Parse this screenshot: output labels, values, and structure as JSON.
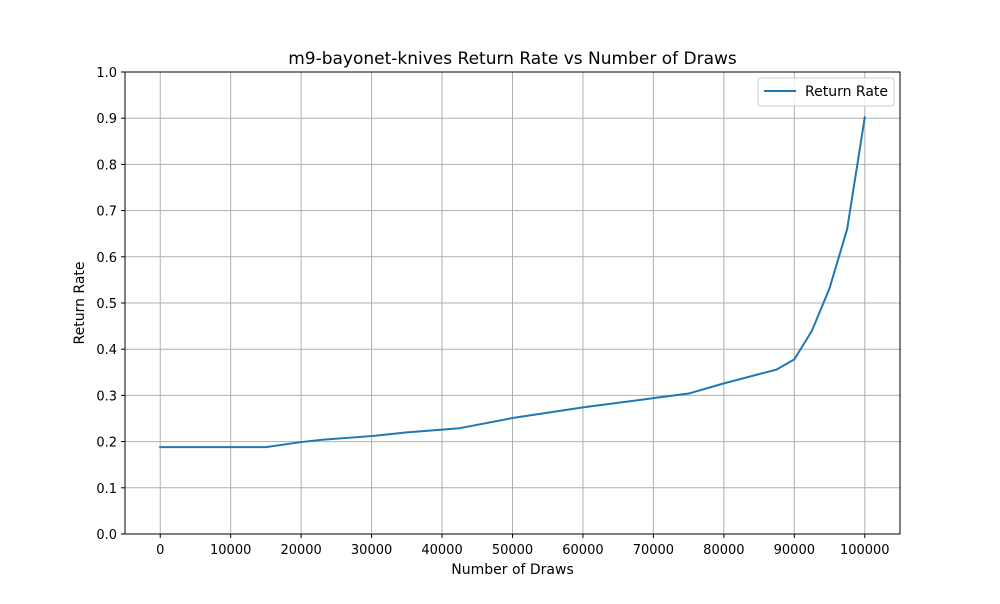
{
  "chart_data": {
    "type": "line",
    "title": "m9-bayonet-knives Return Rate vs Number of Draws",
    "xlabel": "Number of Draws",
    "ylabel": "Return Rate",
    "xlim": [
      -5000,
      105000
    ],
    "ylim": [
      0.0,
      1.0
    ],
    "xticks": [
      0,
      10000,
      20000,
      30000,
      40000,
      50000,
      60000,
      70000,
      80000,
      90000,
      100000
    ],
    "xtick_labels": [
      "0",
      "10000",
      "20000",
      "30000",
      "40000",
      "50000",
      "60000",
      "70000",
      "80000",
      "90000",
      "100000"
    ],
    "yticks": [
      0.0,
      0.1,
      0.2,
      0.3,
      0.4,
      0.5,
      0.6,
      0.7,
      0.8,
      0.9,
      1.0
    ],
    "ytick_labels": [
      "0.0",
      "0.1",
      "0.2",
      "0.3",
      "0.4",
      "0.5",
      "0.6",
      "0.7",
      "0.8",
      "0.9",
      "1.0"
    ],
    "grid": true,
    "legend_position": "top-right",
    "series": [
      {
        "name": "Return Rate",
        "color": "#1f77b4",
        "x": [
          0,
          15000,
          20000,
          23000,
          30000,
          35000,
          40000,
          42500,
          50000,
          60000,
          65000,
          70000,
          75000,
          80000,
          85000,
          87500,
          90000,
          92500,
          95000,
          97500,
          100000
        ],
        "y": [
          0.188,
          0.188,
          0.199,
          0.204,
          0.212,
          0.22,
          0.226,
          0.229,
          0.251,
          0.274,
          0.284,
          0.294,
          0.304,
          0.326,
          0.346,
          0.356,
          0.378,
          0.44,
          0.532,
          0.66,
          0.902
        ]
      }
    ]
  }
}
